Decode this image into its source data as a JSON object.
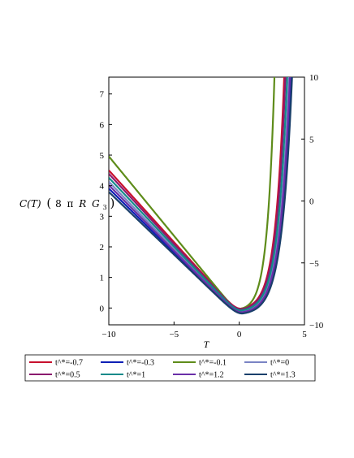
{
  "chart_data": {
    "type": "line",
    "xlabel": "T",
    "ylabel": "C(T) (8 π R G₃)",
    "ylabel_parts": {
      "func": "C(T)",
      "open": "(",
      "num": "8",
      "pi": "π",
      "R": "R",
      "G": "G",
      "sub": "3",
      "close": ")"
    },
    "xlim": [
      -10,
      5
    ],
    "ylim": [
      -0.55,
      7.55
    ],
    "y2lim": [
      -10,
      10
    ],
    "x_ticks": [
      -10,
      -5,
      0,
      5
    ],
    "x_tick_labels": [
      "−10",
      "−5",
      "0",
      "5"
    ],
    "y_ticks": [
      0,
      1,
      2,
      3,
      4,
      5,
      6,
      7
    ],
    "y_tick_labels": [
      "0",
      "1",
      "2",
      "3",
      "4",
      "5",
      "6",
      "7"
    ],
    "y2_ticks": [
      -10,
      -5,
      0,
      5,
      10
    ],
    "y2_tick_labels": [
      "−10",
      "−5",
      "0",
      "5",
      "10"
    ],
    "grid": false,
    "legend_position": "bottom",
    "series": [
      {
        "name": "t^*=-0.7",
        "color": "#c8102e",
        "a": 0.47,
        "x0": 0.1,
        "ymin": -0.02,
        "b": 1.45
      },
      {
        "name": "t^*=-0.3",
        "color": "#0d1fb5",
        "a": 0.42,
        "x0": 0.22,
        "ymin": -0.16,
        "b": 1.3
      },
      {
        "name": "t^*=-0.1",
        "color": "#5e8c1a",
        "a": 0.52,
        "x0": 0.0,
        "ymin": -0.04,
        "b": 1.8
      },
      {
        "name": "t^*=0",
        "color": "#7a84c4",
        "a": 0.44,
        "x0": 0.18,
        "ymin": -0.12,
        "b": 1.34
      },
      {
        "name": "t^*=0.5",
        "color": "#8b1a6e",
        "a": 0.46,
        "x0": 0.12,
        "ymin": -0.04,
        "b": 1.42
      },
      {
        "name": "t^*=1",
        "color": "#138a8a",
        "a": 0.45,
        "x0": 0.15,
        "ymin": -0.08,
        "b": 1.38
      },
      {
        "name": "t^*=1.2",
        "color": "#6a2fa8",
        "a": 0.43,
        "x0": 0.2,
        "ymin": -0.14,
        "b": 1.32
      },
      {
        "name": "t^*=1.3",
        "color": "#1a3f6b",
        "a": 0.41,
        "x0": 0.24,
        "ymin": -0.18,
        "b": 1.28
      }
    ]
  }
}
